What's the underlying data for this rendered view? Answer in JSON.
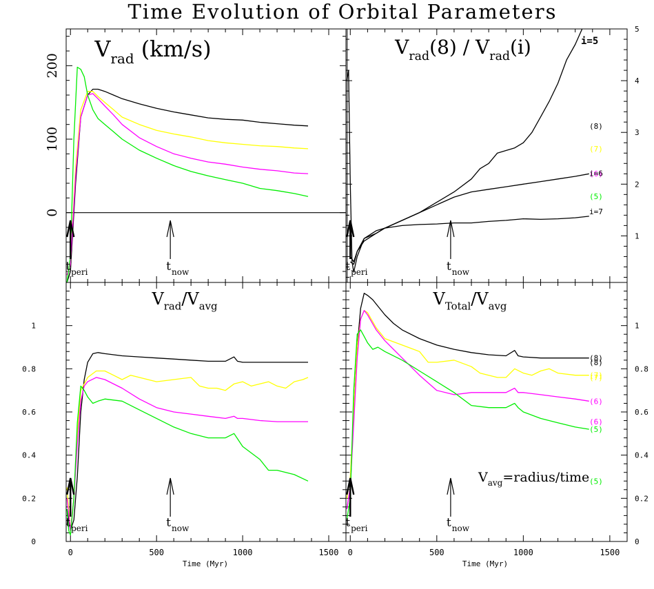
{
  "figure": {
    "title": "Time Evolution of Orbital Parameters"
  },
  "chart_data": [
    {
      "id": "vrad",
      "type": "line",
      "title": "V_rad (km/s)",
      "xlim": [
        -25,
        1600
      ],
      "ylim": [
        -95,
        250
      ],
      "yticks": [
        0,
        100,
        200
      ],
      "ylabel_side": "left",
      "zero_line": 0,
      "series": [
        {
          "name": "(8)",
          "color": "#000000",
          "x": [
            -20,
            0,
            30,
            60,
            100,
            130,
            160,
            200,
            250,
            300,
            400,
            500,
            600,
            700,
            800,
            900,
            1000,
            1100,
            1200,
            1300,
            1380
          ],
          "y": [
            -95,
            -80,
            40,
            130,
            160,
            168,
            168,
            165,
            160,
            155,
            148,
            142,
            137,
            133,
            129,
            127,
            126,
            123,
            121,
            119,
            118
          ]
        },
        {
          "name": "(7)",
          "color": "#ffff00",
          "x": [
            -20,
            0,
            30,
            60,
            100,
            130,
            160,
            200,
            250,
            300,
            400,
            500,
            600,
            700,
            800,
            900,
            1000,
            1100,
            1200,
            1300,
            1380
          ],
          "y": [
            -85,
            -70,
            60,
            140,
            165,
            165,
            158,
            150,
            140,
            130,
            120,
            112,
            107,
            103,
            98,
            95,
            93,
            91,
            90,
            88,
            87
          ]
        },
        {
          "name": "(6)",
          "color": "#ff00ff",
          "x": [
            -20,
            0,
            30,
            60,
            100,
            130,
            160,
            200,
            250,
            300,
            400,
            500,
            600,
            700,
            800,
            900,
            1000,
            1100,
            1200,
            1300,
            1380
          ],
          "y": [
            -85,
            -70,
            50,
            130,
            160,
            162,
            155,
            145,
            133,
            120,
            102,
            90,
            80,
            74,
            69,
            66,
            62,
            59,
            57,
            54,
            53
          ]
        },
        {
          "name": "(5)",
          "color": "#00ee00",
          "x": [
            -20,
            0,
            20,
            40,
            60,
            80,
            100,
            130,
            160,
            200,
            250,
            300,
            400,
            500,
            600,
            700,
            800,
            900,
            1000,
            1100,
            1200,
            1300,
            1380
          ],
          "y": [
            -95,
            -60,
            100,
            198,
            195,
            185,
            160,
            140,
            128,
            120,
            110,
            100,
            85,
            74,
            64,
            56,
            50,
            45,
            40,
            33,
            30,
            26,
            22
          ]
        }
      ],
      "markers": [
        {
          "x": 0,
          "label": "t",
          "sub": "peri"
        },
        {
          "x": 580,
          "label": "t",
          "sub": "now"
        }
      ]
    },
    {
      "id": "ratio",
      "type": "line",
      "title": "V_rad(8) / V_rad(i)",
      "xlim": [
        -25,
        1600
      ],
      "ylim": [
        0.1,
        5.0
      ],
      "yticks": [
        1,
        2,
        3,
        4,
        5
      ],
      "ylabel_side": "right",
      "series": [
        {
          "name": "i=5",
          "color": "#000000",
          "x": [
            -20,
            -10,
            0,
            10,
            20,
            40,
            80,
            150,
            200,
            300,
            400,
            500,
            600,
            700,
            750,
            800,
            850,
            900,
            950,
            1000,
            1050,
            1100,
            1150,
            1200,
            1250,
            1300,
            1340
          ],
          "y": [
            4.0,
            4.2,
            2.0,
            0.5,
            0.3,
            0.6,
            0.95,
            1.05,
            1.15,
            1.3,
            1.45,
            1.65,
            1.85,
            2.1,
            2.3,
            2.4,
            2.6,
            2.65,
            2.7,
            2.8,
            3.0,
            3.3,
            3.6,
            3.95,
            4.4,
            4.7,
            5.0
          ]
        },
        {
          "name": "i=6",
          "color": "#000000",
          "x": [
            0,
            20,
            40,
            80,
            150,
            200,
            300,
            400,
            500,
            600,
            700,
            800,
            900,
            1000,
            1100,
            1200,
            1300,
            1380
          ],
          "y": [
            0.6,
            0.5,
            0.7,
            0.9,
            1.05,
            1.15,
            1.3,
            1.45,
            1.6,
            1.75,
            1.85,
            1.9,
            1.95,
            2.0,
            2.05,
            2.1,
            2.15,
            2.2
          ]
        },
        {
          "name": "i=7",
          "color": "#000000",
          "x": [
            0,
            20,
            40,
            80,
            150,
            200,
            300,
            400,
            500,
            600,
            700,
            800,
            900,
            1000,
            1100,
            1200,
            1300,
            1380
          ],
          "y": [
            0.5,
            0.45,
            0.7,
            0.95,
            1.1,
            1.15,
            1.2,
            1.22,
            1.23,
            1.25,
            1.25,
            1.28,
            1.3,
            1.33,
            1.32,
            1.33,
            1.35,
            1.38
          ]
        }
      ],
      "markers": [
        {
          "x": 0,
          "label": "t",
          "sub": "peri"
        },
        {
          "x": 580,
          "label": "t",
          "sub": "now"
        }
      ]
    },
    {
      "id": "vradavg",
      "type": "line",
      "title": "V_rad/V_avg",
      "xlim": [
        -25,
        1600
      ],
      "ylim": [
        0,
        1.2
      ],
      "yticks": [
        0,
        0.2,
        0.4,
        0.6,
        0.8,
        1
      ],
      "ylabel_side": "left",
      "series": [
        {
          "name": "(8)",
          "color": "#000000",
          "x": [
            -20,
            0,
            20,
            40,
            60,
            80,
            100,
            130,
            160,
            200,
            300,
            400,
            500,
            600,
            700,
            800,
            900,
            950,
            970,
            1000,
            1100,
            1200,
            1300,
            1380
          ],
          "y": [
            0.15,
            0.05,
            0.1,
            0.3,
            0.6,
            0.75,
            0.83,
            0.87,
            0.875,
            0.87,
            0.86,
            0.855,
            0.85,
            0.845,
            0.84,
            0.835,
            0.835,
            0.855,
            0.835,
            0.83,
            0.83,
            0.83,
            0.83,
            0.83
          ]
        },
        {
          "name": "(7)",
          "color": "#ffff00",
          "x": [
            -20,
            0,
            20,
            40,
            60,
            80,
            100,
            150,
            200,
            250,
            300,
            350,
            400,
            500,
            600,
            700,
            750,
            800,
            850,
            900,
            950,
            1000,
            1050,
            1100,
            1150,
            1200,
            1250,
            1300,
            1350,
            1380
          ],
          "y": [
            0.25,
            0.05,
            0.2,
            0.5,
            0.7,
            0.73,
            0.76,
            0.79,
            0.79,
            0.77,
            0.75,
            0.77,
            0.76,
            0.74,
            0.75,
            0.76,
            0.72,
            0.71,
            0.71,
            0.7,
            0.73,
            0.74,
            0.72,
            0.73,
            0.74,
            0.72,
            0.71,
            0.74,
            0.75,
            0.76
          ]
        },
        {
          "name": "(6)",
          "color": "#ff00ff",
          "x": [
            -20,
            0,
            20,
            40,
            60,
            80,
            100,
            150,
            200,
            300,
            400,
            500,
            600,
            700,
            800,
            900,
            950,
            970,
            1000,
            1100,
            1200,
            1300,
            1380
          ],
          "y": [
            0.2,
            0.05,
            0.2,
            0.45,
            0.65,
            0.72,
            0.74,
            0.76,
            0.75,
            0.71,
            0.66,
            0.62,
            0.6,
            0.59,
            0.58,
            0.57,
            0.58,
            0.57,
            0.57,
            0.56,
            0.555,
            0.555,
            0.555
          ]
        },
        {
          "name": "(5)",
          "color": "#00ee00",
          "x": [
            -20,
            -10,
            0,
            20,
            40,
            60,
            80,
            100,
            130,
            160,
            200,
            300,
            400,
            500,
            600,
            700,
            800,
            900,
            950,
            1000,
            1100,
            1150,
            1200,
            1300,
            1380
          ],
          "y": [
            0.15,
            0.05,
            0.03,
            0.2,
            0.55,
            0.72,
            0.7,
            0.67,
            0.64,
            0.65,
            0.66,
            0.65,
            0.61,
            0.57,
            0.53,
            0.5,
            0.48,
            0.48,
            0.5,
            0.44,
            0.38,
            0.33,
            0.33,
            0.31,
            0.28
          ]
        }
      ],
      "markers": [
        {
          "x": 0,
          "label": "t",
          "sub": "peri"
        },
        {
          "x": 580,
          "label": "t",
          "sub": "now"
        }
      ]
    },
    {
      "id": "vtot",
      "type": "line",
      "title": "V_Total/V_avg",
      "xlim": [
        -25,
        1600
      ],
      "ylim": [
        0,
        1.2
      ],
      "yticks": [
        0,
        0.2,
        0.4,
        0.6,
        0.8,
        1
      ],
      "ylabel_side": "right",
      "annotation": "V_avg=radius/time",
      "series": [
        {
          "name": "(8)",
          "color": "#000000",
          "x": [
            -20,
            0,
            20,
            40,
            60,
            80,
            100,
            130,
            160,
            200,
            250,
            300,
            400,
            500,
            600,
            700,
            800,
            900,
            950,
            970,
            1000,
            1100,
            1200,
            1300,
            1380
          ],
          "y": [
            0.15,
            0.25,
            0.6,
            0.9,
            1.08,
            1.15,
            1.14,
            1.12,
            1.09,
            1.05,
            1.01,
            0.98,
            0.94,
            0.91,
            0.89,
            0.875,
            0.865,
            0.86,
            0.885,
            0.86,
            0.855,
            0.85,
            0.85,
            0.85,
            0.85
          ]
        },
        {
          "name": "(7)",
          "color": "#ffff00",
          "x": [
            -20,
            0,
            20,
            40,
            60,
            80,
            100,
            150,
            200,
            300,
            400,
            450,
            500,
            600,
            700,
            750,
            800,
            850,
            900,
            950,
            1000,
            1050,
            1100,
            1150,
            1200,
            1300,
            1380
          ],
          "y": [
            0.2,
            0.3,
            0.6,
            0.9,
            1.03,
            1.07,
            1.06,
            0.99,
            0.94,
            0.91,
            0.88,
            0.83,
            0.83,
            0.84,
            0.81,
            0.78,
            0.77,
            0.76,
            0.76,
            0.8,
            0.78,
            0.77,
            0.79,
            0.8,
            0.78,
            0.77,
            0.77
          ]
        },
        {
          "name": "(6)",
          "color": "#ff00ff",
          "x": [
            -20,
            0,
            20,
            40,
            60,
            80,
            100,
            150,
            200,
            300,
            400,
            500,
            600,
            700,
            800,
            900,
            950,
            970,
            1000,
            1100,
            1200,
            1300,
            1380
          ],
          "y": [
            0.15,
            0.25,
            0.55,
            0.85,
            1.03,
            1.07,
            1.05,
            0.98,
            0.93,
            0.85,
            0.77,
            0.7,
            0.68,
            0.69,
            0.69,
            0.69,
            0.71,
            0.69,
            0.69,
            0.68,
            0.67,
            0.66,
            0.65
          ]
        },
        {
          "name": "(5)",
          "color": "#00ee00",
          "x": [
            -20,
            0,
            20,
            40,
            60,
            80,
            100,
            130,
            160,
            200,
            300,
            400,
            500,
            600,
            700,
            800,
            900,
            950,
            970,
            1000,
            1100,
            1200,
            1300,
            1380
          ],
          "y": [
            0.1,
            0.2,
            0.7,
            0.96,
            0.98,
            0.95,
            0.92,
            0.89,
            0.9,
            0.88,
            0.84,
            0.79,
            0.74,
            0.69,
            0.63,
            0.62,
            0.62,
            0.64,
            0.62,
            0.6,
            0.57,
            0.55,
            0.53,
            0.52
          ]
        }
      ],
      "markers": [
        {
          "x": 0,
          "label": "t",
          "sub": "peri"
        },
        {
          "x": 580,
          "label": "t",
          "sub": "now"
        }
      ]
    }
  ],
  "axes": {
    "xticks": [
      0,
      500,
      1000,
      1500
    ],
    "xlabel": "Time (Myr)"
  }
}
